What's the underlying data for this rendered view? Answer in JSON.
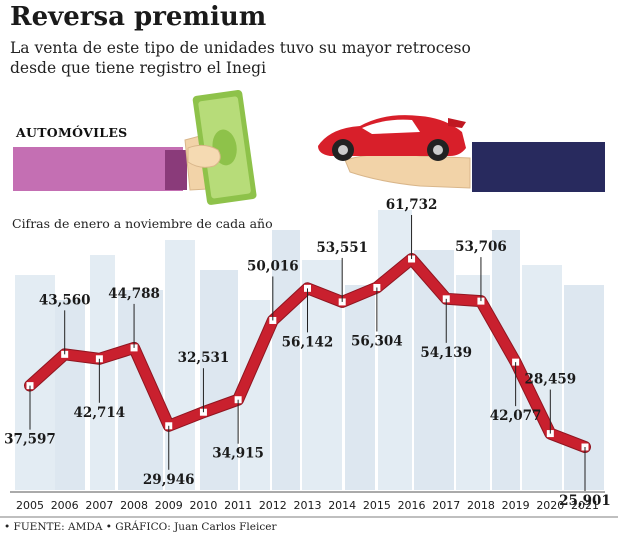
{
  "header": {
    "title": "Reversa premium",
    "subtitle": "La venta de este tipo de unidades tuvo su mayor retroceso desde que tiene registro el Inegi"
  },
  "section_label": "AUTOMÓVILES",
  "note": "Cifras de enero a noviembre de cada año",
  "footer": "• FUENTE: AMDA • GRÁFICO: Juan Carlos Fleicer",
  "colors": {
    "line": "#c9202e",
    "marker": "#ffffff",
    "skyline": "#dbe6ef",
    "accent_pink": "#c06cb0",
    "accent_navy": "#27285d"
  },
  "icons": [
    "money-hand-icon",
    "car-hand-icon"
  ],
  "chart_data": {
    "type": "line",
    "x": [
      "2005",
      "2006",
      "2007",
      "2008",
      "2009",
      "2010",
      "2011",
      "2012",
      "2013",
      "2014",
      "2015",
      "2016",
      "2017",
      "2018",
      "2019",
      "2020",
      "2021"
    ],
    "values": [
      37597,
      43560,
      42714,
      44788,
      29946,
      32531,
      34915,
      50016,
      56142,
      53551,
      56304,
      61732,
      54139,
      53706,
      42077,
      28459,
      25901
    ],
    "labels": [
      "37,597",
      "43,560",
      "42,714",
      "44,788",
      "29,946",
      "32,531",
      "34,915",
      "50,016",
      "56,142",
      "53,551",
      "56,304",
      "61,732",
      "54,139",
      "53,706",
      "42,077",
      "28,459",
      "25,901"
    ],
    "label_position": [
      "below",
      "above",
      "below",
      "above",
      "below",
      "above",
      "below",
      "above",
      "below",
      "above",
      "below",
      "above",
      "below",
      "above",
      "below",
      "above",
      "below"
    ],
    "grid": false,
    "legend": "none"
  }
}
